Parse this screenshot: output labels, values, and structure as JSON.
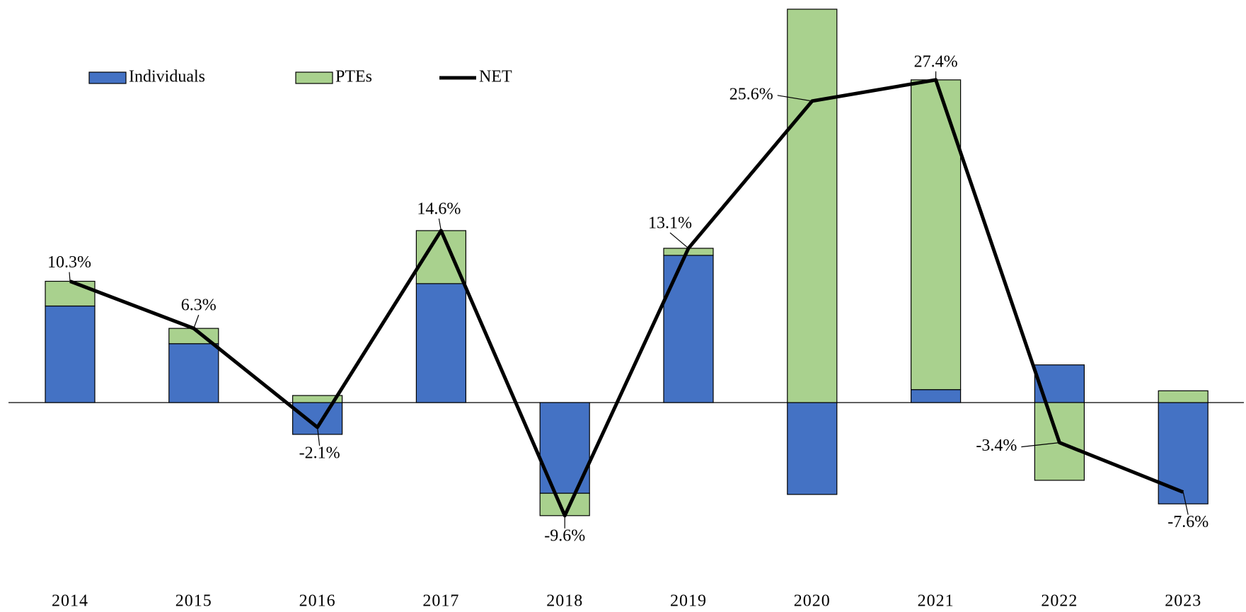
{
  "chart_data": {
    "type": "stacked-bar-line",
    "categories": [
      "2014",
      "2015",
      "2016",
      "2017",
      "2018",
      "2019",
      "2020",
      "2021",
      "2022",
      "2023"
    ],
    "series": [
      {
        "name": "Individuals",
        "type": "bar",
        "color": "#4472c4",
        "values": [
          8.2,
          5.0,
          -2.7,
          10.1,
          -7.7,
          12.5,
          -7.8,
          1.1,
          3.2,
          -8.6
        ]
      },
      {
        "name": "PTEs",
        "type": "bar",
        "color": "#a9d18e",
        "values": [
          2.1,
          1.3,
          0.6,
          4.5,
          -1.9,
          0.6,
          33.4,
          26.3,
          -6.6,
          1.0
        ]
      },
      {
        "name": "NET",
        "type": "line",
        "color": "#000000",
        "values": [
          10.3,
          6.3,
          -2.1,
          14.6,
          -9.6,
          13.1,
          25.6,
          27.4,
          -3.4,
          -7.6
        ],
        "value_labels": [
          "10.3%",
          "6.3%",
          "-2.1%",
          "14.6%",
          "-9.6%",
          "13.1%",
          "25.6%",
          "27.4%",
          "-3.4%",
          "-7.6%"
        ]
      }
    ],
    "legend": "top-left"
  }
}
